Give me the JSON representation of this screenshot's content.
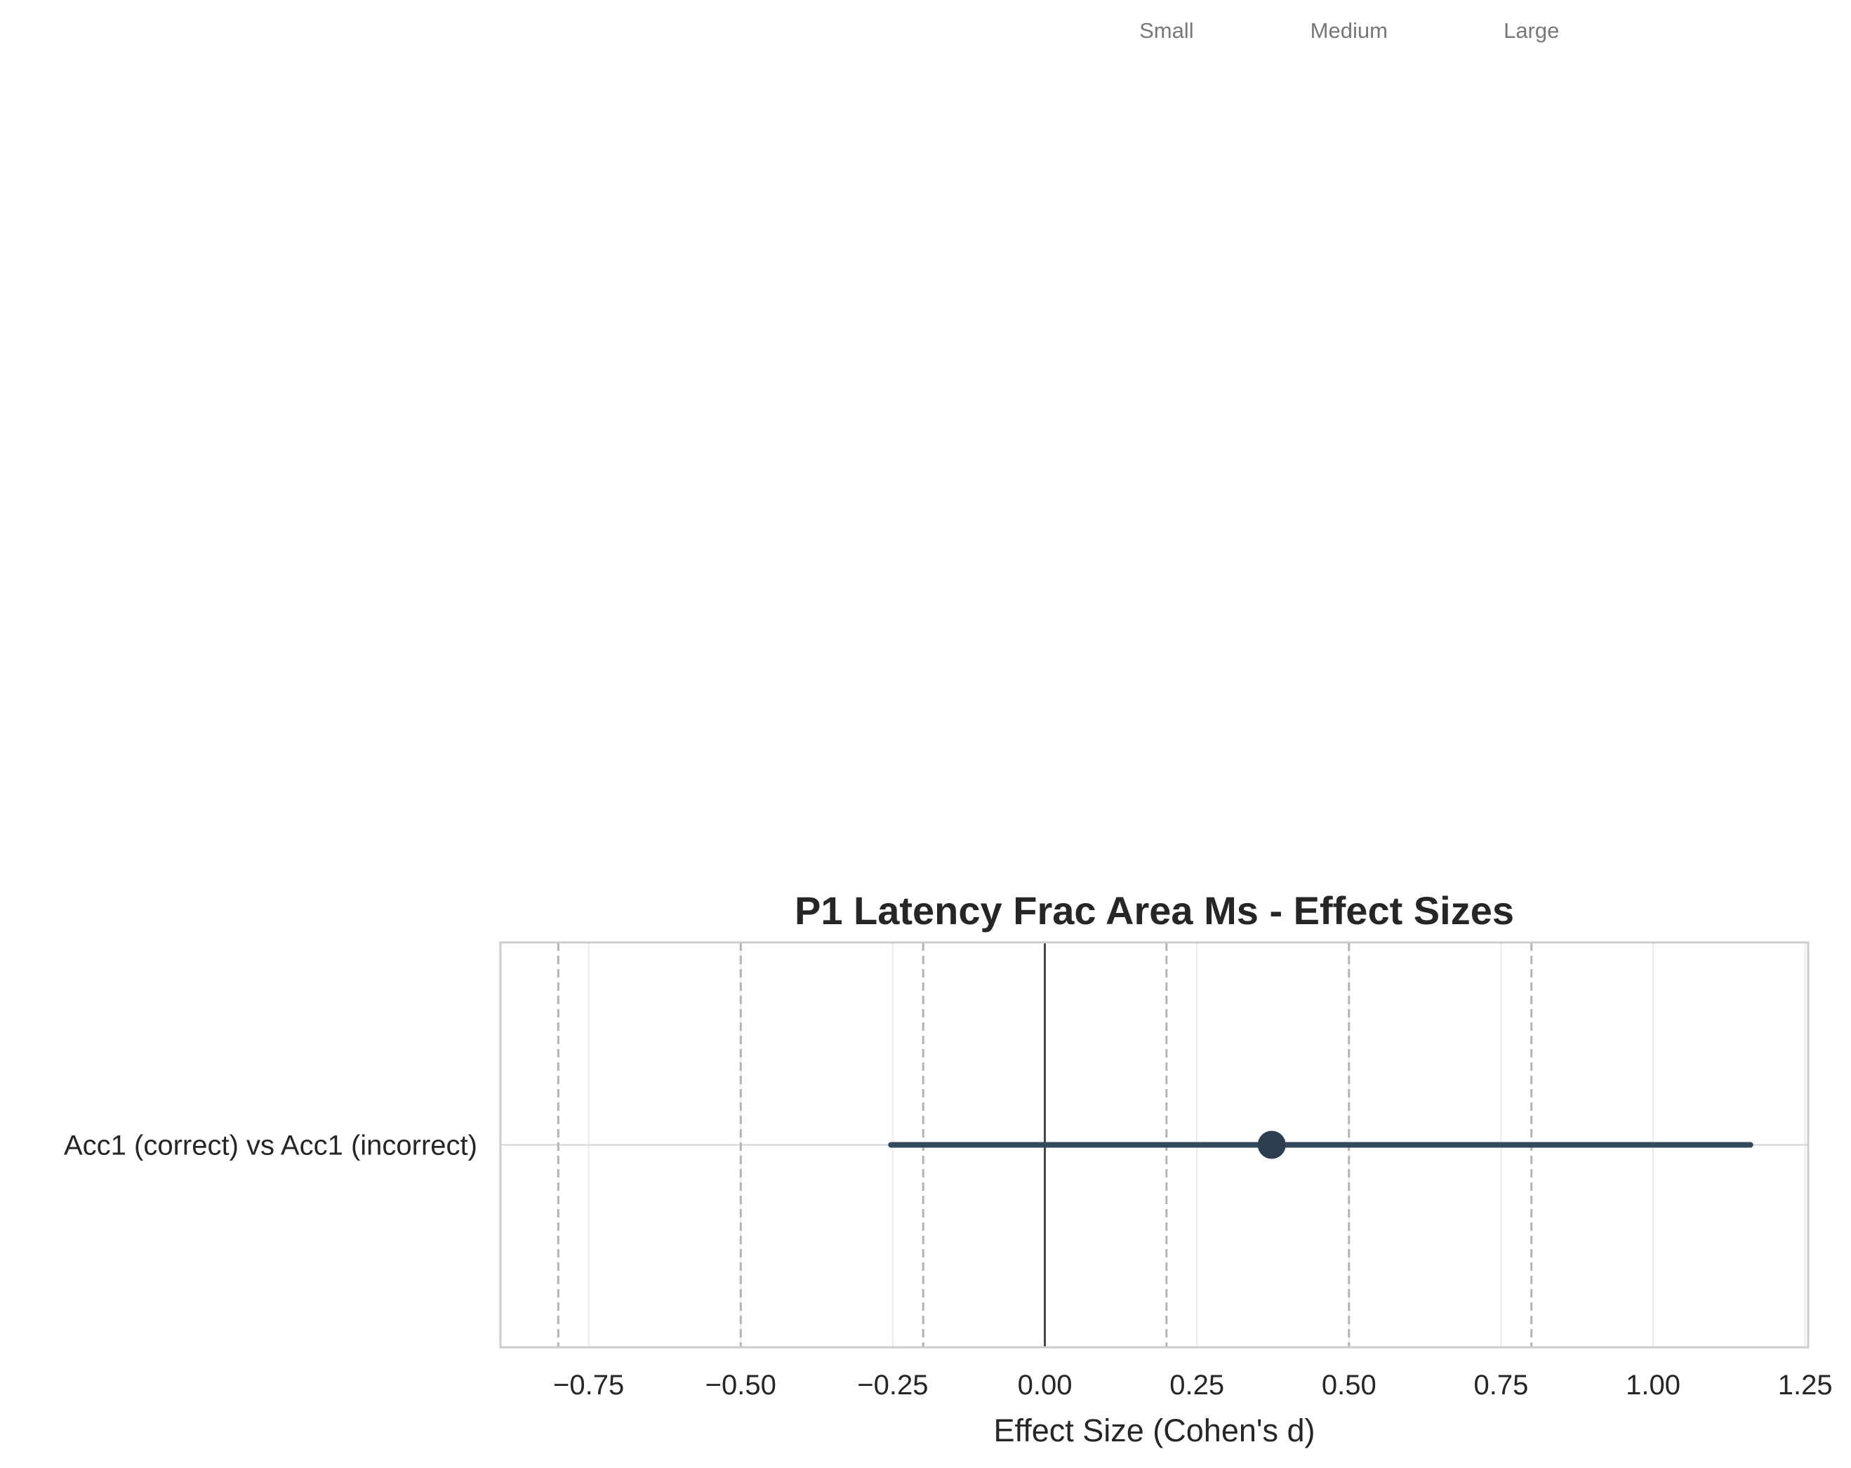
{
  "chart_data": {
    "type": "forest",
    "title": "P1 Latency Frac Area Ms - Effect Sizes",
    "xlabel": "Effect Size (Cohen's d)",
    "ylabel": "",
    "xlim": [
      -0.895,
      1.255
    ],
    "xticks": [
      -0.75,
      -0.5,
      -0.25,
      0.0,
      0.25,
      0.5,
      0.75,
      1.0,
      1.25
    ],
    "xtick_labels": [
      "−0.75",
      "−0.50",
      "−0.25",
      "0.00",
      "0.25",
      "0.50",
      "0.75",
      "1.00",
      "1.25"
    ],
    "grid": true,
    "zero_line": 0,
    "reference_lines": [
      {
        "label": "Small",
        "value": 0.2,
        "mirrored": true
      },
      {
        "label": "Medium",
        "value": 0.5,
        "mirrored": true
      },
      {
        "label": "Large",
        "value": 0.8,
        "mirrored": true
      }
    ],
    "series": [
      {
        "category": "Acc1 (correct) vs Acc1 (incorrect)",
        "estimate": 0.373,
        "ci_low": -0.253,
        "ci_high": 1.16
      }
    ],
    "colors": {
      "point": "#2d3e50",
      "ci_line": "#34495e",
      "reference": "#b3b3b3",
      "zero": "#444444",
      "grid": "#ebebeb",
      "frame": "#cccccc"
    }
  }
}
